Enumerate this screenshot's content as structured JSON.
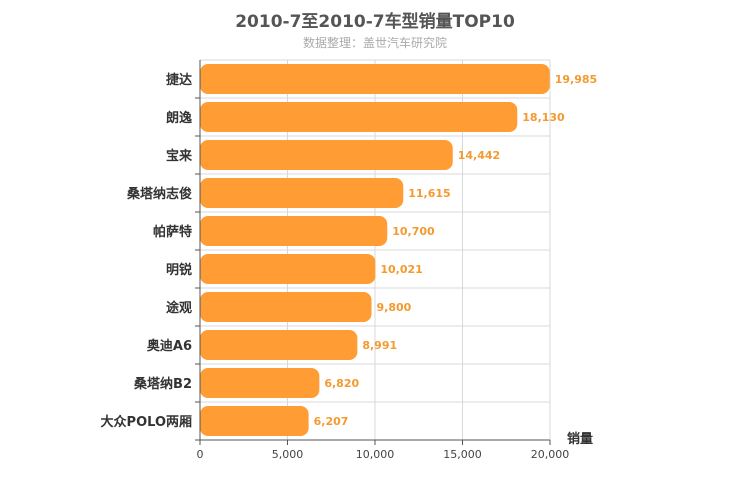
{
  "chart_data": {
    "type": "bar",
    "orientation": "horizontal",
    "title": "2010-7至2010-7车型销量TOP10",
    "subtitle": "数据整理：盖世汽车研究院",
    "xlabel": "销量",
    "ylabel": "",
    "categories": [
      "捷达",
      "朗逸",
      "宝来",
      "桑塔纳志俊",
      "帕萨特",
      "明锐",
      "途观",
      "奥迪A6",
      "桑塔纳B2",
      "大众POLO两厢"
    ],
    "values": [
      19985,
      18130,
      14442,
      11615,
      10700,
      10021,
      9800,
      8991,
      6820,
      6207
    ],
    "value_labels": [
      "19,985",
      "18,130",
      "14,442",
      "11,615",
      "10,700",
      "10,021",
      "9,800",
      "8,991",
      "6,820",
      "6,207"
    ],
    "xlim": [
      0,
      20000
    ],
    "xticks": [
      0,
      5000,
      10000,
      15000,
      20000
    ],
    "xtick_labels": [
      "0",
      "5,000",
      "10,000",
      "15,000",
      "20,000"
    ],
    "grid": true,
    "legend": "none",
    "bar_color": "#ff9c33",
    "value_label_color": "#f39a30"
  }
}
